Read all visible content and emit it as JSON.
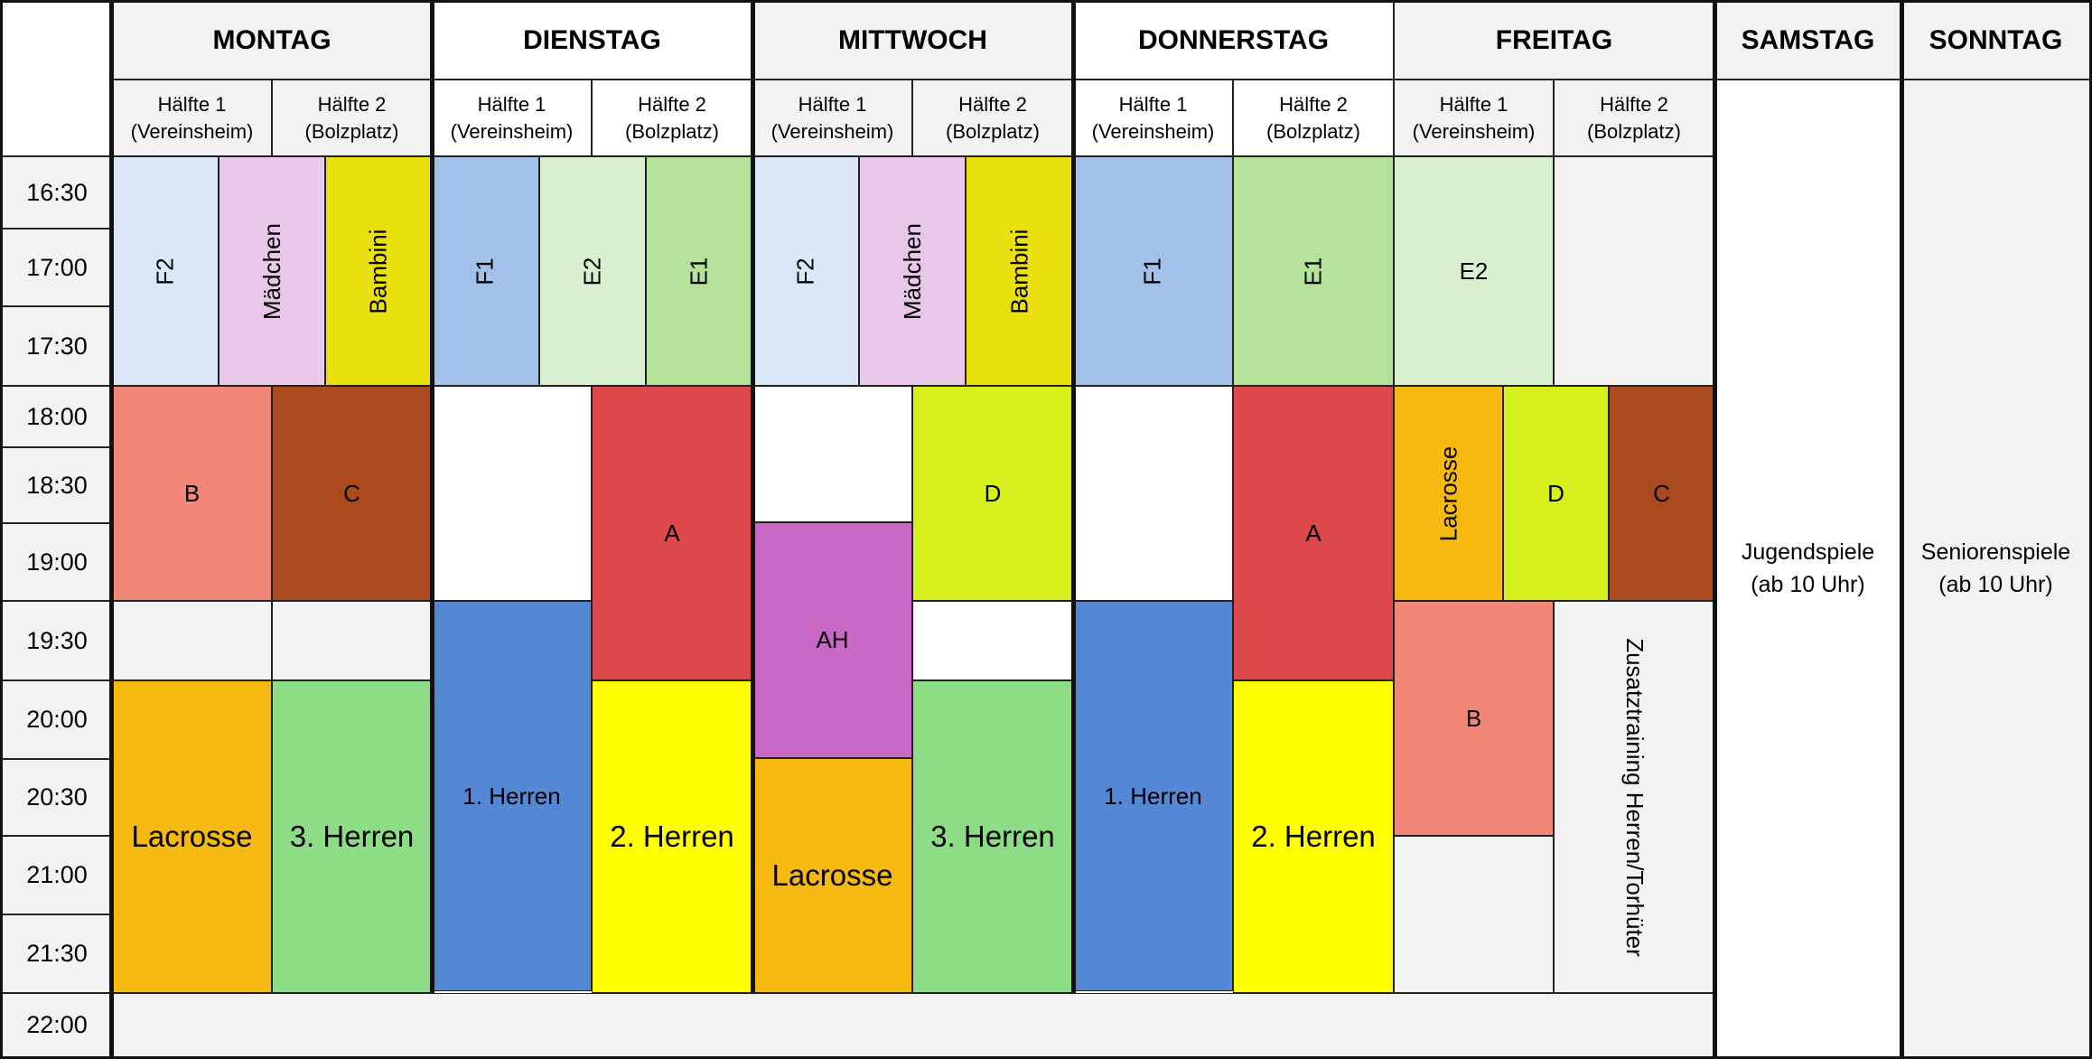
{
  "days": [
    {
      "id": "montag",
      "label": "MONTAG"
    },
    {
      "id": "dienstag",
      "label": "DIENSTAG"
    },
    {
      "id": "mittwoch",
      "label": "MITTWOCH"
    },
    {
      "id": "donnerstag",
      "label": "DONNERSTAG"
    },
    {
      "id": "freitag",
      "label": "FREITAG"
    },
    {
      "id": "samstag",
      "label": "SAMSTAG"
    },
    {
      "id": "sonntag",
      "label": "SONNTAG"
    }
  ],
  "halves": {
    "h1": {
      "line1": "Hälfte 1",
      "line2": "(Vereinsheim)"
    },
    "h2": {
      "line1": "Hälfte 2",
      "line2": "(Bolzplatz)"
    }
  },
  "times": [
    "16:30",
    "17:00",
    "17:30",
    "18:00",
    "18:30",
    "19:00",
    "19:30",
    "20:00",
    "20:30",
    "21:00",
    "21:30",
    "22:00"
  ],
  "colors": {
    "light_blue": "#dae7f6",
    "pink": "#e8c7e8",
    "mustard": "#ebe00f",
    "sky": "#a2c0e8",
    "pale_green": "#d9f0ce",
    "green": "#b3e298",
    "salmon": "#f08777",
    "brown": "#ab4b1d",
    "red": "#dc484b",
    "lime": "#d5f01c",
    "orange": "#f5b912",
    "magenta": "#c868c4",
    "blue": "#5487d4",
    "yellow": "#ffff00",
    "mint": "#8ddc86",
    "grey": "#f2f2f2",
    "white": "#ffffff"
  },
  "blocks": {
    "mo_f2": "F2",
    "mo_maedchen": "Mädchen",
    "mo_bambini": "Bambini",
    "mo_b": "B",
    "mo_c": "C",
    "mo_lacrosse": "Lacrosse",
    "mo_herren3": "3. Herren",
    "di_f1": "F1",
    "di_e2": "E2",
    "di_e1": "E1",
    "di_a": "A",
    "di_herren1": "1. Herren",
    "di_herren2": "2. Herren",
    "mi_f2": "F2",
    "mi_maedchen": "Mädchen",
    "mi_bambini": "Bambini",
    "mi_d": "D",
    "mi_ah": "AH",
    "mi_lacrosse": "Lacrosse",
    "mi_herren3": "3. Herren",
    "do_f1": "F1",
    "do_e1": "E1",
    "do_a": "A",
    "do_herren1": "1. Herren",
    "do_herren2": "2. Herren",
    "fr_e2": "E2",
    "fr_lacrosse": "Lacrosse",
    "fr_d": "D",
    "fr_c": "C",
    "fr_b": "B",
    "fr_zusatz": "Zusatztraining Herren/Torhüter"
  },
  "weekend": {
    "samstag": {
      "line1": "Jugendspiele",
      "line2": "(ab 10 Uhr)"
    },
    "sonntag": {
      "line1": "Seniorenspiele",
      "line2": "(ab 10 Uhr)"
    }
  }
}
